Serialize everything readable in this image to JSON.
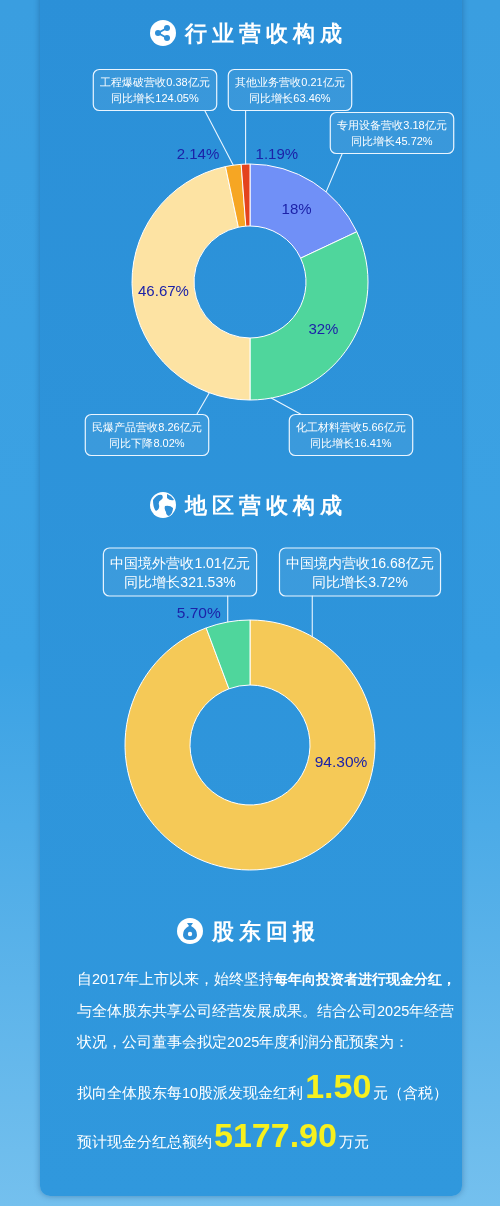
{
  "chart_data": [
    {
      "type": "donut",
      "title": "行业营收构成",
      "categories": [
        "专用设备营收3.18亿元同比增长45.72%",
        "化工材料营收5.66亿元同比增长16.41%",
        "民爆产品营收8.26亿元同比下降8.02%",
        "工程爆破营收0.38亿元同比增长124.05%",
        "其他业务营收0.21亿元同比增长63.46%"
      ],
      "values": [
        18,
        32,
        46.67,
        2.14,
        1.19
      ],
      "colors": [
        "#7090f7",
        "#4fd69c",
        "#fde3a3",
        "#f6a623",
        "#e4431d"
      ],
      "value_labels": [
        "18%",
        "32%",
        "46.67%",
        "2.14%",
        "1.19%"
      ]
    },
    {
      "type": "donut",
      "title": "地区营收构成",
      "categories": [
        "中国境内营收16.68亿元同比增长3.72%",
        "中国境外营收1.01亿元同比增长321.53%"
      ],
      "values": [
        94.3,
        5.7
      ],
      "colors": [
        "#f5c957",
        "#4fd69c"
      ],
      "value_labels": [
        "94.30%",
        "5.70%"
      ]
    },
    {
      "type": "other",
      "title": "股东回报",
      "annotations": [
        "自2017年上市以来，始终坚持",
        "每年向投资者进行现金分红，",
        "与全体股东共享公司经营发展成果。结合公司2025年经营状况，公司董事会拟定2025年度利润分配预案为：",
        "拟向全体股东每10股派发现金红利",
        "1.50",
        "元（含税）",
        "预计现金分红总额约",
        "5177.90",
        "万元"
      ]
    }
  ]
}
